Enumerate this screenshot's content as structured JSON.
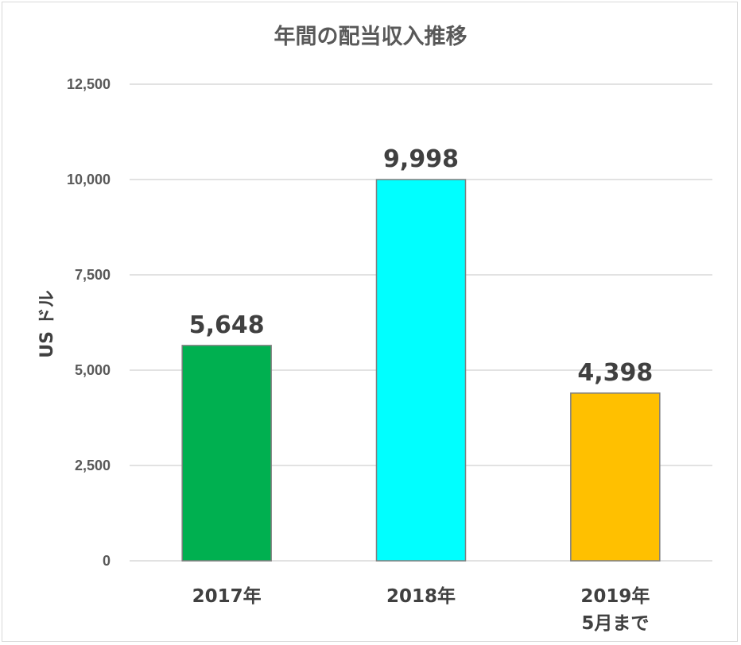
{
  "chart_data": {
    "type": "bar",
    "title": "年間の配当収入推移",
    "ylabel": "US ドル",
    "xlabel": "",
    "categories": [
      [
        "2017年"
      ],
      [
        "2018年"
      ],
      [
        "2019年",
        "5月まで"
      ]
    ],
    "values": [
      5648,
      9998,
      4398
    ],
    "data_labels": [
      "5,648",
      "9,998",
      "4,398"
    ],
    "colors": [
      "#00b050",
      "#00ffff",
      "#ffc000"
    ],
    "bar_outline": "#7f7f7f",
    "ylim": [
      0,
      12500
    ],
    "yticks": [
      0,
      2500,
      5000,
      7500,
      10000,
      12500
    ],
    "ytick_labels": [
      "0",
      "2,500",
      "5,000",
      "7,500",
      "10,000",
      "12,500"
    ],
    "grid": true,
    "legend": "none"
  }
}
